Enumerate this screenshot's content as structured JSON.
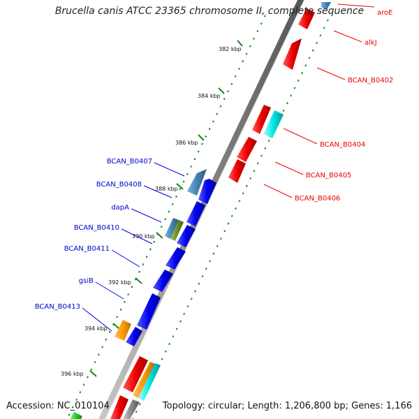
{
  "title": "Brucella canis ATCC 23365 chromosome II, complete sequence",
  "accession": "Accession: NC_010104",
  "summary": "Topology: circular; Length: 1,206,800 bp; Genes: 1,166",
  "kbp_labels": [
    "382 kbp",
    "384 kbp",
    "386 kbp",
    "388 kbp",
    "390 kbp",
    "392 kbp",
    "394 kbp",
    "396 kbp"
  ],
  "genes_right": [
    "aroE",
    "alkJ",
    "BCAN_B0402",
    "BCAN_B0404",
    "BCAN_B0405",
    "BCAN_B0406"
  ],
  "genes_left": [
    "BCAN_B0407",
    "BCAN_B0408",
    "dapA",
    "BCAN_B0410",
    "BCAN_B0411",
    "gsiB",
    "BCAN_B0413"
  ],
  "colors": {
    "forward": "#ee0000",
    "reverse": "#0000ee",
    "backbone": "#888888",
    "gc_ticks": "#118811",
    "steelblue": "#4682b4",
    "cyan": "#00e5e5",
    "orange": "#ff9900",
    "olive": "#6b8e23",
    "green": "#22cc22"
  }
}
